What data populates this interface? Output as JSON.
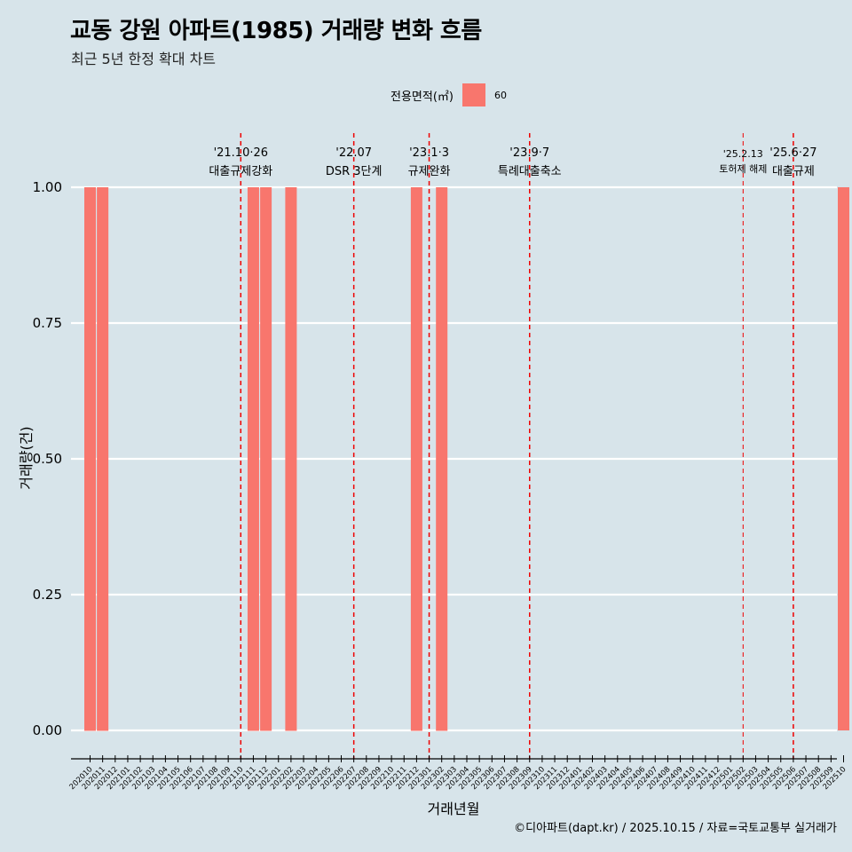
{
  "title": "교동 강원 아파트(1985) 거래량 변화 흐름",
  "subtitle": "최근 5년 한정 확대 차트",
  "caption": "©디아파트(dapt.kr) / 2025.10.15 / 자료=국토교통부 실거래가",
  "legend": {
    "title": "전용면적(㎡)",
    "label": "60"
  },
  "colors": {
    "bar": "#f8766d",
    "background": "#d7e4ea",
    "grid": "#ffffff",
    "event_line": "#ee0000"
  },
  "chart_data": {
    "type": "bar",
    "title": "교동 강원 아파트(1985) 거래량 변화 흐름",
    "xlabel": "거래년월",
    "ylabel": "거래량(건)",
    "ylim": [
      0,
      1
    ],
    "yticks": [
      "0.00",
      "0.25",
      "0.50",
      "0.75",
      "1.00"
    ],
    "categories": [
      "202010",
      "202011",
      "202012",
      "202101",
      "202102",
      "202103",
      "202104",
      "202105",
      "202106",
      "202107",
      "202108",
      "202109",
      "202110",
      "202111",
      "202112",
      "202201",
      "202202",
      "202203",
      "202204",
      "202205",
      "202206",
      "202207",
      "202208",
      "202209",
      "202210",
      "202211",
      "202212",
      "202301",
      "202302",
      "202303",
      "202304",
      "202305",
      "202306",
      "202307",
      "202308",
      "202309",
      "202310",
      "202311",
      "202312",
      "202401",
      "202402",
      "202403",
      "202404",
      "202405",
      "202406",
      "202407",
      "202408",
      "202409",
      "202410",
      "202411",
      "202412",
      "202501",
      "202502",
      "202503",
      "202504",
      "202505",
      "202506",
      "202507",
      "202508",
      "202509",
      "202510"
    ],
    "series": [
      {
        "name": "60",
        "values": [
          1,
          1,
          0,
          0,
          0,
          0,
          0,
          0,
          0,
          0,
          0,
          0,
          0,
          1,
          1,
          0,
          1,
          0,
          0,
          0,
          0,
          0,
          0,
          0,
          0,
          0,
          1,
          0,
          1,
          0,
          0,
          0,
          0,
          0,
          0,
          0,
          0,
          0,
          0,
          0,
          0,
          0,
          0,
          0,
          0,
          0,
          0,
          0,
          0,
          0,
          0,
          0,
          0,
          0,
          0,
          0,
          0,
          0,
          0,
          0,
          1
        ]
      }
    ],
    "zero_bar_months": [
      "202010",
      "202011",
      "202111",
      "202112",
      "202202",
      "202212",
      "202302"
    ],
    "events": [
      {
        "month": "202110",
        "date": "'21.10·26",
        "text": "대출규제강화"
      },
      {
        "month": "202207",
        "date": "'22.07",
        "text": "DSR 3단계"
      },
      {
        "month": "202301",
        "date": "'23.1·3",
        "text": "규제완화"
      },
      {
        "month": "202309",
        "date": "'23.9·7",
        "text": "특례대출축소"
      },
      {
        "month": "202502",
        "date": "'25.2.13",
        "text": "토허제 해제"
      },
      {
        "month": "202506",
        "date": "'25.6·27",
        "text": "대출규제"
      }
    ]
  }
}
